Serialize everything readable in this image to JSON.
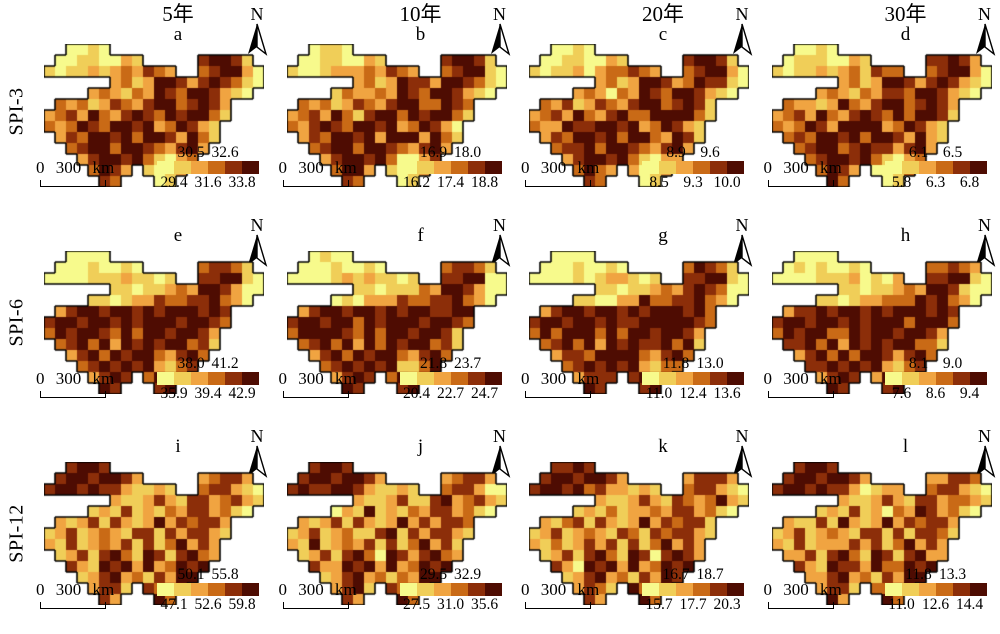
{
  "figure": {
    "columns": [
      "5年",
      "10年",
      "20年",
      "30年"
    ],
    "rows": [
      "SPI-3",
      "SPI-6",
      "SPI-12"
    ],
    "north_label": "N",
    "scalebar_label": "0 300 km",
    "palette": [
      "#f7fa8c",
      "#f0ce58",
      "#f0a441",
      "#c96a16",
      "#8c2e09",
      "#4e0c02"
    ],
    "grids": {
      "spi3": [
        "..0010..............",
        ".00110021.....45541.",
        "101121232432..345520",
        "......23125542454310",
        "....232132543554210.",
        ".3231243245534542...",
        "23425324543545531...",
        "3235435545235421....",
        ".243554535542531....",
        "..3455355432452.....",
        "...24554531023......",
        "....3542.1012.......",
        ".....43...01........"
      ],
      "spi6": [
        "..0000..............",
        ".00010010.....34431.",
        "000011121101..445510",
        "......11011232554200",
        "....110122433445320.",
        ".2455455454555454...",
        "45545545455545543...",
        "3545543535545542....",
        ".345352545455341....",
        "..2453545532453.....",
        "...34545452134......",
        "....2454.3545.......",
        ".....54...45........"
      ],
      "spi12": [
        "..4554..............",
        ".45545542.....23442.",
        "455454421121..344210",
        "......21124214423421",
        "....121412132442310.",
        ".2124142125243442...",
        "12412321441424421...",
        "2141232414135242....",
        ".124145315414532....",
        "..4215452523545.....",
        "...12452314255......",
        "....2441.4354.......",
        ".....42...53........"
      ]
    },
    "panels": [
      {
        "letter": "a",
        "row": 0,
        "col": 0,
        "grid": "spi3",
        "variant": 0,
        "legend_top": [
          "30.5",
          "32.6"
        ],
        "legend_bottom": [
          "29.4",
          "31.6",
          "33.8"
        ]
      },
      {
        "letter": "b",
        "row": 0,
        "col": 1,
        "grid": "spi3",
        "variant": 1,
        "legend_top": [
          "16.9",
          "18.0"
        ],
        "legend_bottom": [
          "16.2",
          "17.4",
          "18.8"
        ]
      },
      {
        "letter": "c",
        "row": 0,
        "col": 2,
        "grid": "spi3",
        "variant": 2,
        "legend_top": [
          "8.9",
          "9.6"
        ],
        "legend_bottom": [
          "8.5",
          "9.3",
          "10.0"
        ]
      },
      {
        "letter": "d",
        "row": 0,
        "col": 3,
        "grid": "spi3",
        "variant": 3,
        "legend_top": [
          "6.1",
          "6.5"
        ],
        "legend_bottom": [
          "5.8",
          "6.3",
          "6.8"
        ]
      },
      {
        "letter": "e",
        "row": 1,
        "col": 0,
        "grid": "spi6",
        "variant": 0,
        "legend_top": [
          "38.0",
          "41.2"
        ],
        "legend_bottom": [
          "35.9",
          "39.4",
          "42.9"
        ]
      },
      {
        "letter": "f",
        "row": 1,
        "col": 1,
        "grid": "spi6",
        "variant": 1,
        "legend_top": [
          "21.8",
          "23.7"
        ],
        "legend_bottom": [
          "20.4",
          "22.7",
          "24.7"
        ]
      },
      {
        "letter": "g",
        "row": 1,
        "col": 2,
        "grid": "spi6",
        "variant": 2,
        "legend_top": [
          "11.8",
          "13.0"
        ],
        "legend_bottom": [
          "11.0",
          "12.4",
          "13.6"
        ]
      },
      {
        "letter": "h",
        "row": 1,
        "col": 3,
        "grid": "spi6",
        "variant": 3,
        "legend_top": [
          "8.1",
          "9.0"
        ],
        "legend_bottom": [
          "7.6",
          "8.6",
          "9.4"
        ]
      },
      {
        "letter": "i",
        "row": 2,
        "col": 0,
        "grid": "spi12",
        "variant": 0,
        "legend_top": [
          "50.1",
          "55.8"
        ],
        "legend_bottom": [
          "47.1",
          "52.6",
          "59.8"
        ]
      },
      {
        "letter": "j",
        "row": 2,
        "col": 1,
        "grid": "spi12",
        "variant": 1,
        "legend_top": [
          "29.5",
          "32.9"
        ],
        "legend_bottom": [
          "27.5",
          "31.0",
          "35.6"
        ]
      },
      {
        "letter": "k",
        "row": 2,
        "col": 2,
        "grid": "spi12",
        "variant": 2,
        "legend_top": [
          "16.7",
          "18.7"
        ],
        "legend_bottom": [
          "15.7",
          "17.7",
          "20.3"
        ]
      },
      {
        "letter": "l",
        "row": 2,
        "col": 3,
        "grid": "spi12",
        "variant": 3,
        "legend_top": [
          "11.8",
          "13.3"
        ],
        "legend_bottom": [
          "11.0",
          "12.6",
          "14.4"
        ]
      }
    ]
  }
}
